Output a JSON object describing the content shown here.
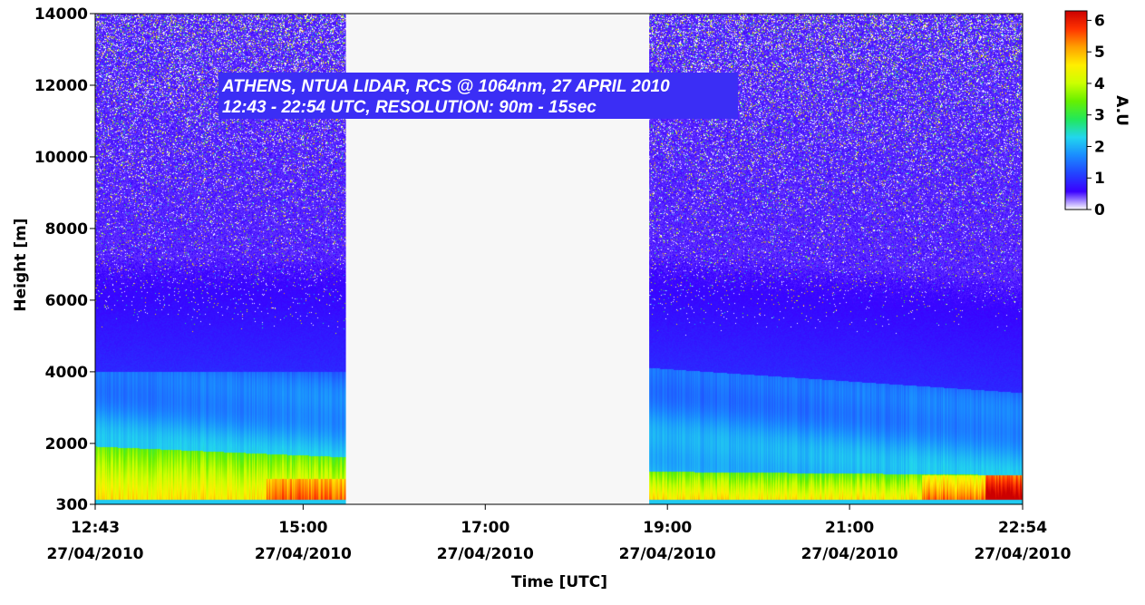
{
  "chart_data": {
    "type": "heatmap",
    "title_lines": [
      "ATHENS, NTUA LIDAR, RCS @ 1064nm, 27 APRIL 2010",
      "12:43 - 22:54 UTC, RESOLUTION: 90m - 15sec"
    ],
    "xlabel": "Time [UTC]",
    "ylabel": "Height [m]",
    "x_ticks": [
      {
        "time": "12:43",
        "date": "27/04/2010",
        "hours": 12.717
      },
      {
        "time": "15:00",
        "date": "27/04/2010",
        "hours": 15.0
      },
      {
        "time": "17:00",
        "date": "27/04/2010",
        "hours": 17.0
      },
      {
        "time": "19:00",
        "date": "27/04/2010",
        "hours": 19.0
      },
      {
        "time": "21:00",
        "date": "27/04/2010",
        "hours": 21.0
      },
      {
        "time": "22:54",
        "date": "27/04/2010",
        "hours": 22.9
      }
    ],
    "xlim_hours": [
      12.717,
      22.9
    ],
    "y_ticks": [
      300,
      2000,
      4000,
      6000,
      8000,
      10000,
      12000,
      14000
    ],
    "ylim": [
      300,
      14000
    ],
    "data_gaps_hours": [
      [
        15.47,
        18.8
      ]
    ],
    "colorbar": {
      "label": "A.U",
      "ticks": [
        0,
        1,
        2,
        3,
        4,
        5,
        6
      ],
      "range": [
        0,
        6.3
      ]
    },
    "colormap": [
      "#ffffff",
      "#3a00ff",
      "#2244ff",
      "#1a8cff",
      "#22d6ee",
      "#22e85a",
      "#66f000",
      "#ccff00",
      "#ffee00",
      "#ffa000",
      "#ff3300",
      "#cc0000"
    ],
    "layers_hours_height_m": [
      {
        "description_value": "aerosol layer tops",
        "x_hours": [
          12.717,
          15.47,
          18.8,
          22.9
        ],
        "top_m": [
          4000,
          4000,
          4100,
          3400
        ]
      },
      {
        "description_value": "boundary layer tops",
        "x_hours": [
          12.717,
          15.47,
          18.8,
          22.9
        ],
        "top_m": [
          1900,
          1600,
          1200,
          1100
        ]
      }
    ]
  }
}
